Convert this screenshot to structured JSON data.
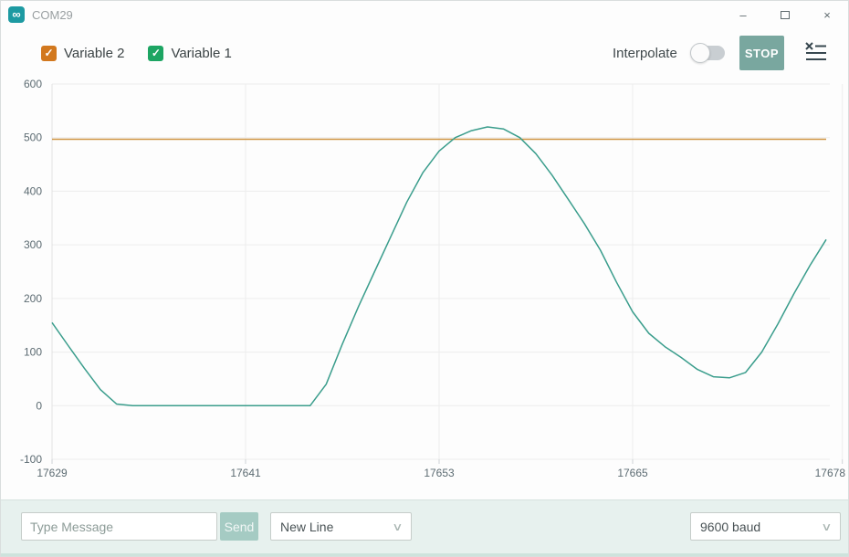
{
  "window": {
    "title": "COM29",
    "app_icon_glyph": "∞"
  },
  "legend": [
    {
      "label": "Variable 2",
      "color": "#d2781e",
      "checked": true,
      "check_glyph": "✓"
    },
    {
      "label": "Variable 1",
      "color": "#1da563",
      "checked": true,
      "check_glyph": "✓"
    }
  ],
  "toolbar": {
    "interpolate_label": "Interpolate",
    "interpolate_on": false,
    "stop_label": "STOP"
  },
  "colors": {
    "accent_teal": "#1d9aa2",
    "stop_button_bg": "#79a79f",
    "series_variable1": "#3a9d8c",
    "series_variable2": "#cf9543",
    "message_bar_bg": "#e7f1ee"
  },
  "chart_data": {
    "type": "line",
    "title": "",
    "xlabel": "",
    "ylabel": "",
    "xlim": [
      17629,
      17678
    ],
    "ylim": [
      -100,
      600
    ],
    "x_ticks": [
      17629,
      17641,
      17653,
      17665,
      17678
    ],
    "y_ticks": [
      600,
      500,
      400,
      300,
      200,
      100,
      0,
      -100
    ],
    "grid": true,
    "legend_position": "top-left",
    "series": [
      {
        "name": "Variable 2",
        "color": "#cf9543",
        "x": [
          17629,
          17677
        ],
        "values": [
          497,
          497
        ]
      },
      {
        "name": "Variable 1",
        "color": "#3a9d8c",
        "x": [
          17629,
          17630,
          17631,
          17632,
          17633,
          17634,
          17635,
          17636,
          17637,
          17638,
          17639,
          17640,
          17641,
          17642,
          17643,
          17644,
          17645,
          17646,
          17647,
          17648,
          17649,
          17650,
          17651,
          17652,
          17653,
          17654,
          17655,
          17656,
          17657,
          17658,
          17659,
          17660,
          17661,
          17662,
          17663,
          17664,
          17665,
          17666,
          17667,
          17668,
          17669,
          17670,
          17671,
          17672,
          17673,
          17674,
          17675,
          17676,
          17677
        ],
        "values": [
          155,
          112,
          70,
          30,
          3,
          0,
          0,
          0,
          0,
          0,
          0,
          0,
          0,
          0,
          0,
          0,
          0,
          40,
          115,
          185,
          250,
          315,
          380,
          435,
          475,
          500,
          513,
          520,
          516,
          500,
          470,
          430,
          385,
          340,
          290,
          230,
          175,
          135,
          110,
          90,
          68,
          54,
          52,
          62,
          100,
          152,
          209,
          262,
          310
        ]
      }
    ]
  },
  "message_bar": {
    "placeholder": "Type Message",
    "send_label": "Send",
    "line_ending_selected": "New Line",
    "baud_selected": "9600 baud",
    "chevron_glyph": "∨"
  }
}
